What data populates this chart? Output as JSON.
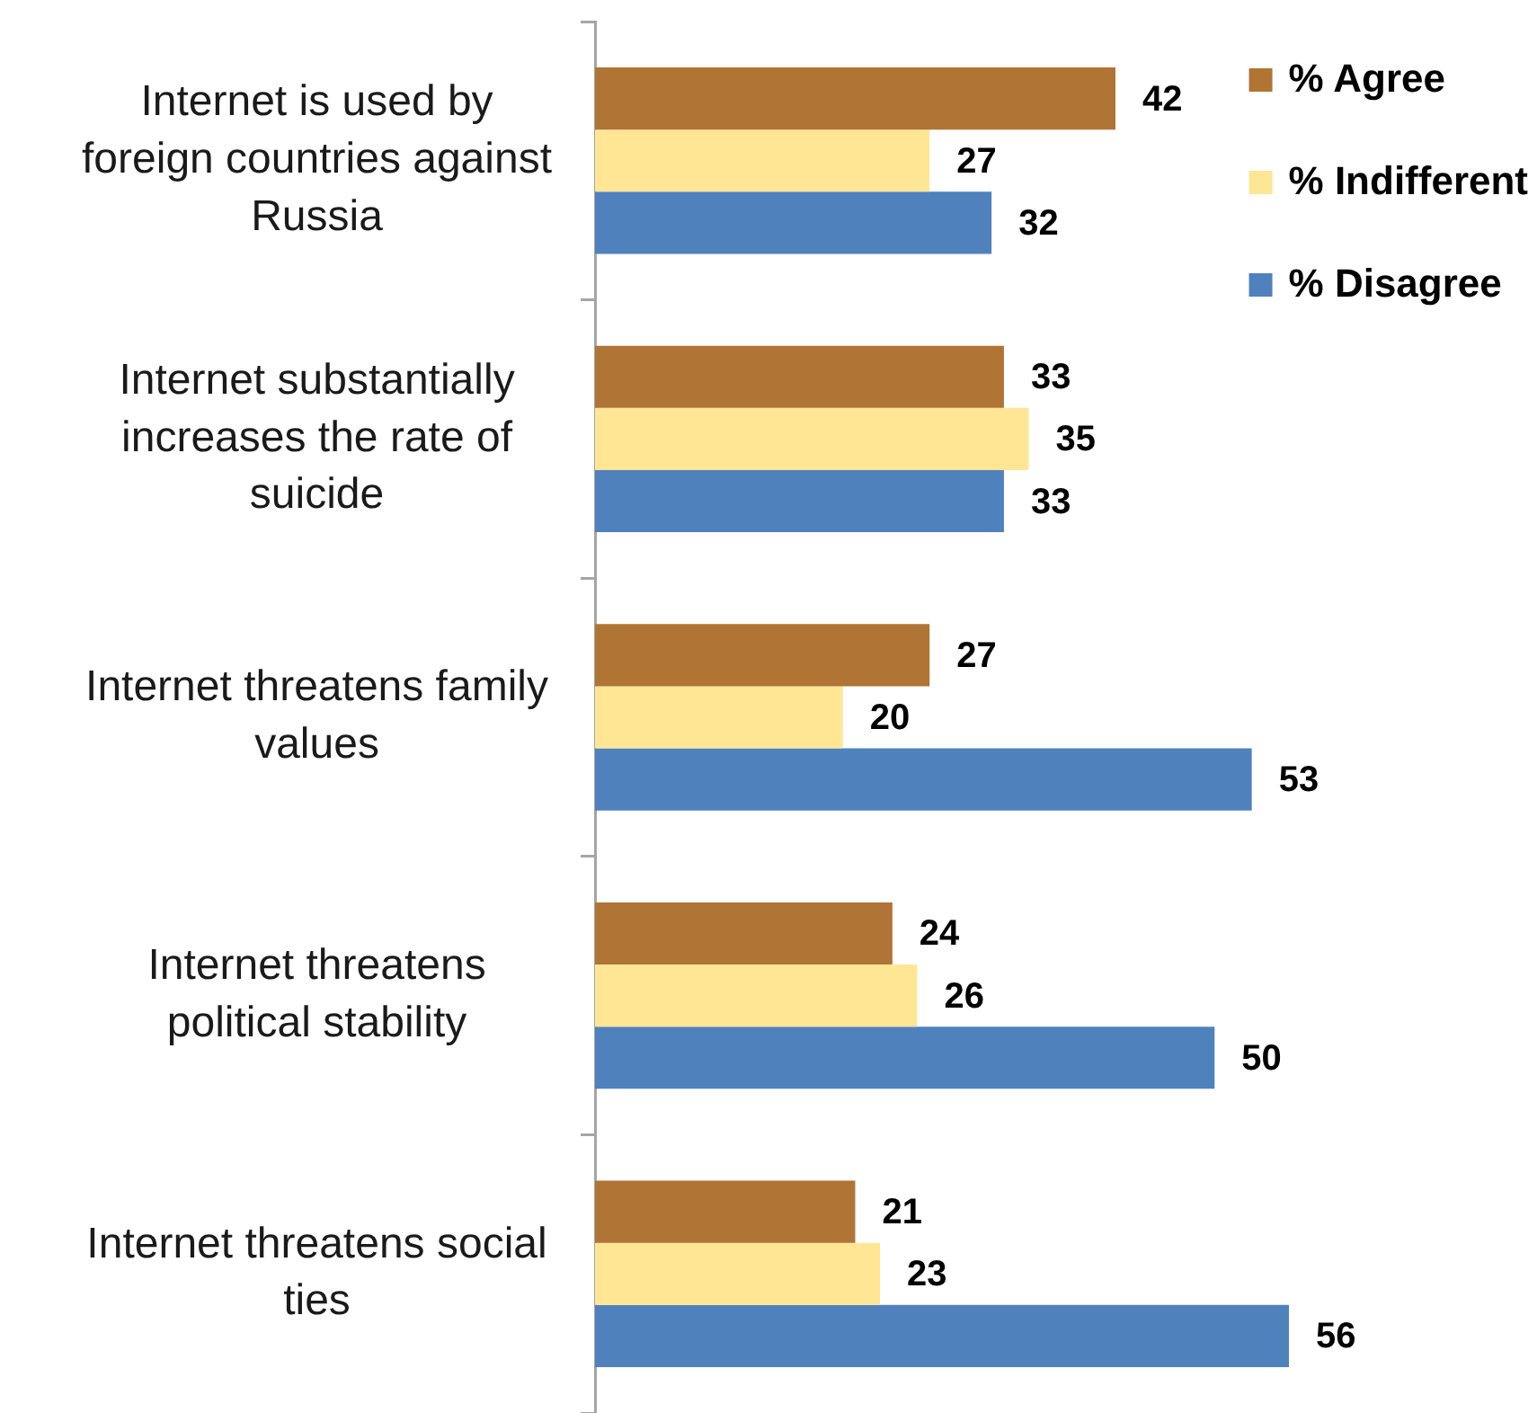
{
  "chart_data": {
    "type": "bar",
    "orientation": "horizontal",
    "categories": [
      "Internet is used by foreign countries against Russia",
      "Internet substantially increases the rate of suicide",
      "Internet threatens family values",
      "Internet threatens political stability",
      "Internet threatens social ties"
    ],
    "series": [
      {
        "name": "% Agree",
        "color": "#b07434",
        "values": [
          42,
          33,
          27,
          24,
          21
        ]
      },
      {
        "name": "% Indifferent",
        "color": "#fee695",
        "values": [
          27,
          35,
          20,
          26,
          23
        ]
      },
      {
        "name": "% Disagree",
        "color": "#4f81bd",
        "values": [
          32,
          33,
          53,
          50,
          56
        ]
      }
    ],
    "data_labels": true,
    "legend": "top right",
    "tick_labels": "y"
  }
}
